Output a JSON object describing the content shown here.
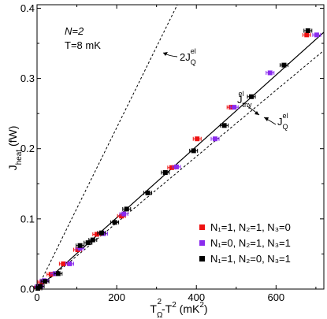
{
  "chart_data": {
    "type": "scatter",
    "xlabel": "T_Ω² - T² (mK²)",
    "ylabel": "J_heat (fW)",
    "xlim": [
      0,
      720
    ],
    "ylim": [
      0,
      0.405
    ],
    "x_ticks": [
      0,
      200,
      400,
      600
    ],
    "y_ticks": [
      0.0,
      0.1,
      0.2,
      0.3,
      0.4
    ],
    "x_tick_labels": [
      "0",
      "200",
      "400",
      "600"
    ],
    "y_tick_labels": [
      "0.0",
      "0.1",
      "0.2",
      "0.3",
      "0.4"
    ],
    "legend_position": "lower-right",
    "annotations": {
      "n": "N=2",
      "t": "T=8 mK"
    },
    "lines": [
      {
        "label": "2J_Q^el",
        "style": "dashed",
        "slope": 0.00115
      },
      {
        "label": "J_thy^el",
        "style": "solid",
        "slope": 0.000508
      },
      {
        "label": "J_Q^el",
        "style": "dashed",
        "slope": 0.000472
      }
    ],
    "series": [
      {
        "name": "N₁=1, N₂=1, N₃=0",
        "color": "#ee1111",
        "points": [
          [
            3,
            0.002
          ],
          [
            12,
            0.01
          ],
          [
            35,
            0.021
          ],
          [
            66,
            0.036
          ],
          [
            102,
            0.056
          ],
          [
            150,
            0.078
          ],
          [
            212,
            0.104
          ],
          [
            338,
            0.173
          ],
          [
            402,
            0.214
          ],
          [
            487,
            0.259
          ],
          [
            677,
            0.362
          ]
        ]
      },
      {
        "name": "N₁=0, N₂=1, N₃=1",
        "color": "#8a2bee",
        "points": [
          [
            5,
            0.004
          ],
          [
            18,
            0.012
          ],
          [
            45,
            0.022
          ],
          [
            82,
            0.036
          ],
          [
            108,
            0.058
          ],
          [
            167,
            0.079
          ],
          [
            218,
            0.107
          ],
          [
            350,
            0.174
          ],
          [
            447,
            0.214
          ],
          [
            495,
            0.259
          ],
          [
            585,
            0.308
          ],
          [
            702,
            0.362
          ]
        ]
      },
      {
        "name": "N₁=1, N₂=0, N₃=1",
        "color": "#000000",
        "points": [
          [
            2,
            0.001
          ],
          [
            8,
            0.004
          ],
          [
            20,
            0.011
          ],
          [
            53,
            0.022
          ],
          [
            108,
            0.062
          ],
          [
            128,
            0.066
          ],
          [
            140,
            0.07
          ],
          [
            162,
            0.08
          ],
          [
            195,
            0.095
          ],
          [
            225,
            0.114
          ],
          [
            278,
            0.137
          ],
          [
            322,
            0.166
          ],
          [
            393,
            0.197
          ],
          [
            470,
            0.233
          ],
          [
            538,
            0.274
          ],
          [
            620,
            0.319
          ],
          [
            680,
            0.368
          ]
        ]
      }
    ]
  }
}
